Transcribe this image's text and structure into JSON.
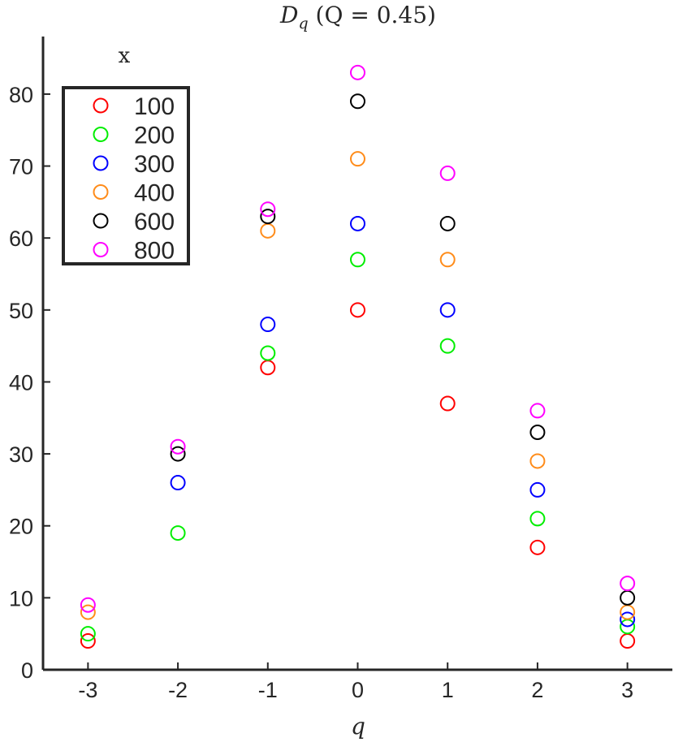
{
  "chart_data": {
    "type": "scatter",
    "title": "D_q (Q = 0.45)",
    "title_parts": {
      "main": "D",
      "sub": "q",
      "rest": " (Q = 0.45)"
    },
    "xlabel": "q",
    "ylabel": "",
    "xlim": [
      -3.5,
      3.5
    ],
    "ylim": [
      0,
      88
    ],
    "x": [
      -3,
      -2,
      -1,
      0,
      1,
      2,
      3
    ],
    "xticks": [
      -3,
      -2,
      -1,
      0,
      1,
      2,
      3
    ],
    "yticks": [
      0,
      10,
      20,
      30,
      40,
      50,
      60,
      70,
      80
    ],
    "marker": "open-circle",
    "grid": false,
    "legend": {
      "title": "x",
      "position": "top-left",
      "boxed": true
    },
    "series": [
      {
        "name": "100",
        "color": "#ff0000",
        "values": [
          4,
          null,
          42,
          50,
          37,
          17,
          4
        ]
      },
      {
        "name": "200",
        "color": "#00ee00",
        "values": [
          5,
          19,
          44,
          57,
          45,
          21,
          6
        ]
      },
      {
        "name": "300",
        "color": "#0000ff",
        "values": [
          null,
          26,
          48,
          62,
          50,
          25,
          7
        ]
      },
      {
        "name": "400",
        "color": "#ff8c1a",
        "values": [
          8,
          null,
          61,
          71,
          57,
          29,
          8
        ]
      },
      {
        "name": "600",
        "color": "#000000",
        "values": [
          null,
          30,
          63,
          79,
          62,
          33,
          10
        ]
      },
      {
        "name": "800",
        "color": "#ff00ff",
        "values": [
          9,
          31,
          64,
          83,
          69,
          36,
          12
        ]
      }
    ]
  }
}
